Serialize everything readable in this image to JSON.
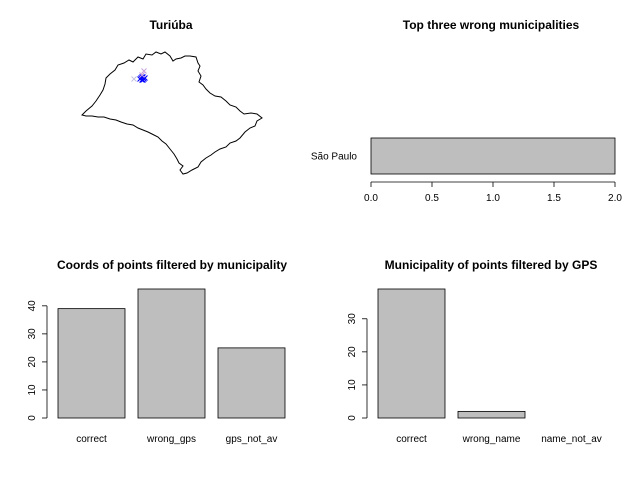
{
  "chart_data": [
    {
      "type": "map",
      "title": "Turiúba",
      "points": [
        {
          "color": "#0000ff",
          "marker": "x",
          "count": 8
        },
        {
          "color": "#c8a0d8",
          "marker": "x",
          "count": 2
        },
        {
          "color": "#c0c0e0",
          "marker": "x",
          "count": 1
        }
      ]
    },
    {
      "type": "bar",
      "orientation": "horizontal",
      "title": "Top three wrong municipalities",
      "categories": [
        "São Paulo"
      ],
      "values": [
        2
      ],
      "xlim": [
        0,
        2
      ],
      "xticks": [
        0.0,
        0.5,
        1.0,
        1.5,
        2.0
      ],
      "xtick_labels": [
        "0.0",
        "0.5",
        "1.0",
        "1.5",
        "2.0"
      ],
      "bar_color": "#bebebe"
    },
    {
      "type": "bar",
      "title": "Coords of points filtered by municipality",
      "categories": [
        "correct",
        "wrong_gps",
        "gps_not_av"
      ],
      "values": [
        39,
        46,
        25
      ],
      "ylim": [
        0,
        46
      ],
      "yticks": [
        0,
        10,
        20,
        30,
        40
      ],
      "ytick_labels": [
        "0",
        "10",
        "20",
        "30",
        "40"
      ],
      "bar_color": "#bebebe"
    },
    {
      "type": "bar",
      "title": "Municipality of points filtered by GPS",
      "categories": [
        "correct",
        "wrong_name",
        "name_not_av"
      ],
      "values": [
        39,
        2,
        0
      ],
      "ylim": [
        0,
        39
      ],
      "yticks": [
        0,
        10,
        20,
        30
      ],
      "ytick_labels": [
        "0",
        "10",
        "20",
        "30"
      ],
      "bar_color": "#bebebe"
    }
  ]
}
